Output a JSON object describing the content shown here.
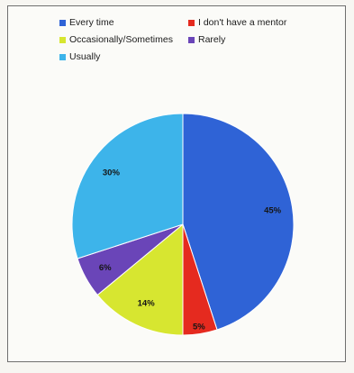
{
  "chart_data": {
    "type": "pie",
    "legend_placement": "top",
    "slices": [
      {
        "name": "Every time",
        "value": 45,
        "label": "45%",
        "color": "#2f63d6"
      },
      {
        "name": "I don't have a mentor",
        "value": 5,
        "label": "5%",
        "color": "#e52a1f"
      },
      {
        "name": "Occasionally/Sometimes",
        "value": 14,
        "label": "14%",
        "color": "#d7e630"
      },
      {
        "name": "Rarely",
        "value": 6,
        "label": "6%",
        "color": "#6a45b8"
      },
      {
        "name": "Usually",
        "value": 30,
        "label": "30%",
        "color": "#3db4ea"
      }
    ]
  }
}
